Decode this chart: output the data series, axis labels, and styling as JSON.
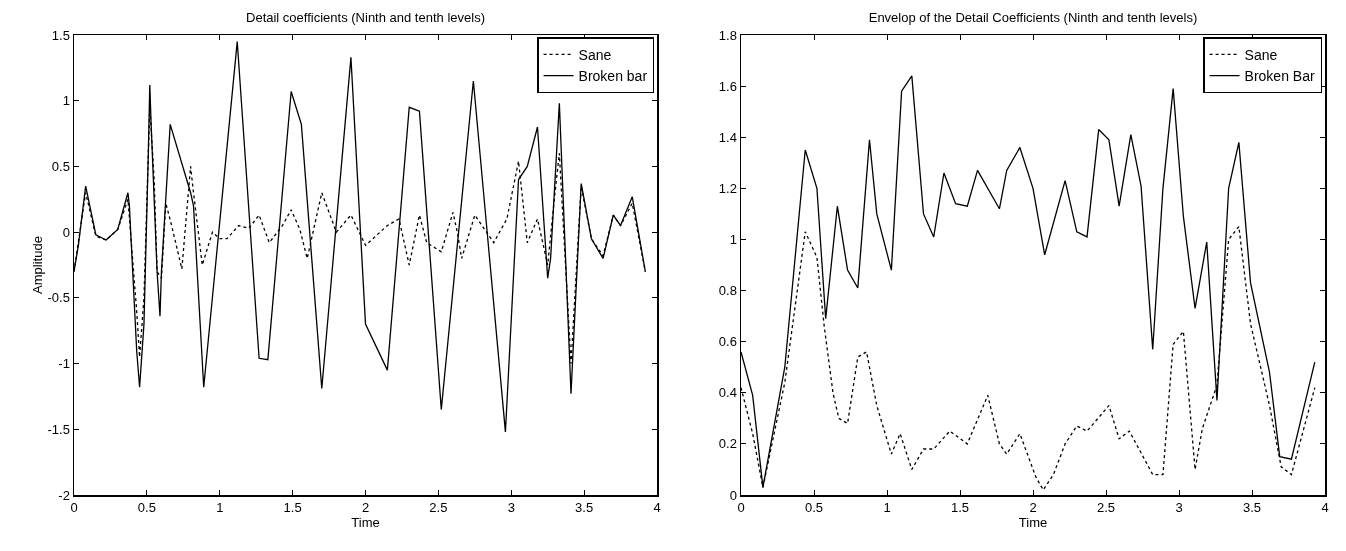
{
  "chart_data": [
    {
      "type": "line",
      "title": "Detail coefficients (Ninth and tenth levels)",
      "xlabel": "Time",
      "ylabel": "Amplitude",
      "xlim": [
        0,
        4
      ],
      "xticks": [
        0,
        0.5,
        1,
        1.5,
        2,
        2.5,
        3,
        3.5,
        4
      ],
      "ylim": [
        -2,
        1.5
      ],
      "yticks": [
        -2,
        -1.5,
        -1,
        -0.5,
        0,
        0.5,
        1,
        1.5
      ],
      "grid": false,
      "legend": "top right",
      "marker": "none",
      "series": [
        {
          "name": "Sane",
          "color": "#000000",
          "line_style": "dotted",
          "x": [
            0,
            0.08,
            0.15,
            0.22,
            0.3,
            0.37,
            0.43,
            0.45,
            0.48,
            0.51,
            0.52,
            0.55,
            0.57,
            0.6,
            0.63,
            0.67,
            0.74,
            0.8,
            0.82,
            0.88,
            0.95,
            1.0,
            1.05,
            1.13,
            1.2,
            1.27,
            1.34,
            1.43,
            1.49,
            1.55,
            1.6,
            1.7,
            1.8,
            1.9,
            2.0,
            2.15,
            2.23,
            2.3,
            2.37,
            2.42,
            2.52,
            2.6,
            2.63,
            2.66,
            2.75,
            2.88,
            2.97,
            3.05,
            3.11,
            3.18,
            3.25,
            3.3,
            3.33,
            3.41,
            3.48,
            3.55,
            3.63,
            3.7,
            3.75,
            3.83,
            3.92
          ],
          "values": [
            -0.3,
            0.3,
            -0.03,
            -0.06,
            0.02,
            0.25,
            -0.6,
            -0.95,
            -0.5,
            0.6,
            0.95,
            0.4,
            -0.3,
            -0.35,
            0.22,
            0.05,
            -0.28,
            0.5,
            0.3,
            -0.25,
            0,
            -0.05,
            -0.05,
            0.05,
            0.03,
            0.13,
            -0.08,
            0.05,
            0.17,
            0.02,
            -0.2,
            0.3,
            0,
            0.13,
            -0.1,
            0.05,
            0.1,
            -0.25,
            0.13,
            -0.08,
            -0.15,
            0.15,
            0,
            -0.2,
            0.13,
            -0.08,
            0.1,
            0.54,
            -0.08,
            0.1,
            -0.25,
            0.3,
            0.6,
            -1,
            0.35,
            -0.05,
            -0.18,
            0.13,
            0.05,
            0.22,
            -0.3
          ]
        },
        {
          "name": "Broken bar",
          "color": "#000000",
          "line_style": "solid",
          "x": [
            0,
            0.03,
            0.08,
            0.15,
            0.22,
            0.3,
            0.37,
            0.38,
            0.43,
            0.45,
            0.48,
            0.51,
            0.52,
            0.53,
            0.57,
            0.59,
            0.6,
            0.66,
            0.8,
            0.82,
            0.89,
            1.12,
            1.27,
            1.33,
            1.49,
            1.56,
            1.7,
            1.9,
            2.0,
            2.15,
            2.3,
            2.37,
            2.52,
            2.74,
            2.96,
            3.05,
            3.11,
            3.18,
            3.25,
            3.27,
            3.33,
            3.41,
            3.48,
            3.55,
            3.63,
            3.7,
            3.75,
            3.83,
            3.92
          ],
          "values": [
            -0.3,
            -0.1,
            0.35,
            -0.02,
            -0.06,
            0.02,
            0.3,
            0.2,
            -0.9,
            -1.18,
            -0.7,
            0.6,
            1.12,
            0.8,
            -0.3,
            -0.64,
            -0.3,
            0.82,
            0.3,
            0.2,
            -1.18,
            1.45,
            -0.96,
            -0.97,
            1.07,
            0.82,
            -1.19,
            1.33,
            -0.7,
            -1.05,
            0.95,
            0.92,
            -1.35,
            1.15,
            -1.52,
            0.4,
            0.5,
            0.8,
            -0.35,
            -0.2,
            0.98,
            -1.23,
            0.37,
            -0.05,
            -0.2,
            0.13,
            0.05,
            0.27,
            -0.3
          ]
        }
      ]
    },
    {
      "type": "line",
      "title": "Envelop of the Detail Coefficients (Ninth and tenth levels)",
      "xlabel": "Time",
      "xlim": [
        0,
        4
      ],
      "xticks": [
        0,
        0.5,
        1,
        1.5,
        2,
        2.5,
        3,
        3.5,
        4
      ],
      "ylim": [
        0,
        1.8
      ],
      "yticks": [
        0,
        0.2,
        0.4,
        0.6,
        0.8,
        1,
        1.2,
        1.4,
        1.6,
        1.8
      ],
      "grid": false,
      "legend": "top right",
      "marker": "none",
      "series": [
        {
          "name": "Sane",
          "color": "#000000",
          "line_style": "dotted",
          "x": [
            0,
            0.08,
            0.15,
            0.3,
            0.44,
            0.52,
            0.57,
            0.63,
            0.67,
            0.73,
            0.8,
            0.86,
            0.93,
            1.03,
            1.09,
            1.17,
            1.25,
            1.32,
            1.43,
            1.55,
            1.69,
            1.77,
            1.82,
            1.91,
            2.02,
            2.07,
            2.14,
            2.22,
            2.3,
            2.37,
            2.52,
            2.59,
            2.66,
            2.82,
            2.89,
            2.96,
            3.03,
            3.11,
            3.16,
            3.26,
            3.34,
            3.41,
            3.49,
            3.62,
            3.7,
            3.77,
            3.93
          ],
          "values": [
            0.42,
            0.24,
            0.03,
            0.44,
            1.03,
            0.93,
            0.66,
            0.4,
            0.3,
            0.28,
            0.54,
            0.56,
            0.35,
            0.16,
            0.24,
            0.1,
            0.18,
            0.18,
            0.25,
            0.2,
            0.39,
            0.2,
            0.16,
            0.24,
            0.07,
            0.02,
            0.08,
            0.2,
            0.27,
            0.25,
            0.35,
            0.22,
            0.25,
            0.08,
            0.08,
            0.59,
            0.64,
            0.1,
            0.26,
            0.43,
            1,
            1.05,
            0.67,
            0.35,
            0.11,
            0.08,
            0.42
          ]
        },
        {
          "name": "Broken Bar",
          "color": "#000000",
          "line_style": "solid",
          "x": [
            0,
            0.08,
            0.15,
            0.3,
            0.44,
            0.52,
            0.58,
            0.66,
            0.73,
            0.8,
            0.88,
            0.93,
            1.03,
            1.1,
            1.17,
            1.25,
            1.32,
            1.39,
            1.47,
            1.55,
            1.62,
            1.77,
            1.82,
            1.91,
            2.0,
            2.08,
            2.22,
            2.3,
            2.37,
            2.45,
            2.52,
            2.59,
            2.67,
            2.74,
            2.82,
            2.89,
            2.96,
            3.03,
            3.11,
            3.19,
            3.26,
            3.34,
            3.41,
            3.49,
            3.62,
            3.69,
            3.77,
            3.93
          ],
          "values": [
            0.56,
            0.39,
            0.03,
            0.5,
            1.35,
            1.2,
            0.69,
            1.13,
            0.88,
            0.81,
            1.39,
            1.1,
            0.88,
            1.58,
            1.64,
            1.1,
            1.01,
            1.26,
            1.14,
            1.13,
            1.27,
            1.12,
            1.27,
            1.36,
            1.2,
            0.94,
            1.23,
            1.03,
            1.01,
            1.43,
            1.39,
            1.13,
            1.41,
            1.21,
            0.57,
            1.2,
            1.59,
            1.09,
            0.73,
            0.99,
            0.37,
            1.2,
            1.38,
            0.83,
            0.48,
            0.15,
            0.14,
            0.52
          ]
        }
      ]
    }
  ]
}
